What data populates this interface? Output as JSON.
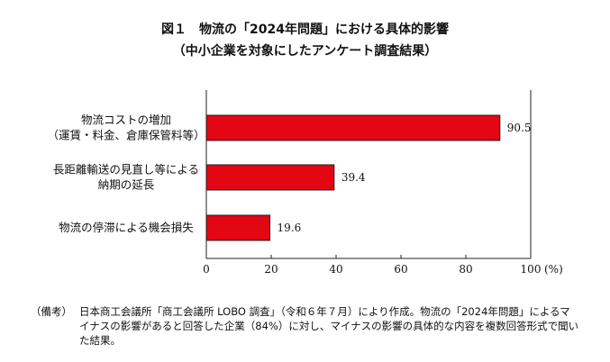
{
  "figure": {
    "title_line1": "図１　物流の「2024年問題」における具体的影響",
    "title_line2": "（中小企業を対象にしたアンケート調査結果）"
  },
  "chart_data": {
    "type": "bar",
    "orientation": "horizontal",
    "categories": [
      [
        "物流コストの増加",
        "（運賃・料金、倉庫保管料等）"
      ],
      [
        "長距離輸送の見直し等による",
        "納期の延長"
      ],
      [
        "物流の停滞による機会損失"
      ]
    ],
    "values": [
      90.5,
      39.4,
      19.6
    ],
    "value_labels": [
      "90.5",
      "39.4",
      "19.6"
    ],
    "xlim": [
      0,
      100
    ],
    "xticks": [
      0,
      20,
      40,
      60,
      80,
      100
    ],
    "x_unit": "(%)",
    "bar_color": "#e30613",
    "grid": false,
    "legend": "none"
  },
  "note": {
    "label": "（備考）",
    "text": "日本商工会議所「商工会議所 LOBO 調査」（令和６年７月）により作成。物流の「2024年問題」によるマイナスの影響があると回答した企業（84%）に対し、マイナスの影響の具体的な内容を複数回答形式で聞いた結果。"
  }
}
